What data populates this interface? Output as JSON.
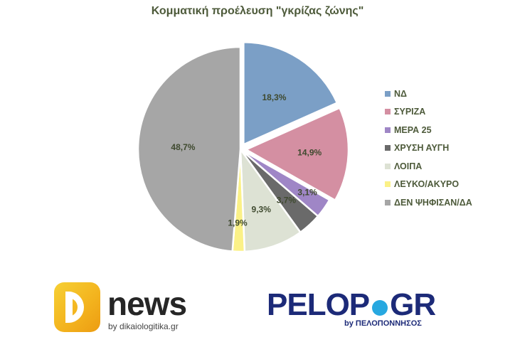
{
  "chart_data": {
    "type": "pie",
    "title": "Κομματική προέλευση \"γκρίζας ζώνης\"",
    "start_angle_deg": 0,
    "direction": "clockwise",
    "exploded": [
      "ΝΔ",
      "ΣΥΡΙΖΑ"
    ],
    "legend_position": "right",
    "slices": [
      {
        "label": "ΝΔ",
        "value": 18.3,
        "value_label": "18,3%",
        "color": "#7b9fc6"
      },
      {
        "label": "ΣΥΡΙΖΑ",
        "value": 14.9,
        "value_label": "14,9%",
        "color": "#d48fa2"
      },
      {
        "label": "ΜΕΡΑ 25",
        "value": 3.1,
        "value_label": "3,1%",
        "color": "#9f86c6"
      },
      {
        "label": "ΧΡΥΣΗ ΑΥΓΗ",
        "value": 3.7,
        "value_label": "3,7%",
        "color": "#6a6a6a"
      },
      {
        "label": "ΛΟΙΠΑ",
        "value": 9.3,
        "value_label": "9,3%",
        "color": "#dde2d4"
      },
      {
        "label": "ΛΕΥΚΟ/ΑΚΥΡΟ",
        "value": 1.9,
        "value_label": "1,9%",
        "color": "#fbf187"
      },
      {
        "label": "ΔΕΝ ΨΗΦΙΣΑΝ/ΔΑ",
        "value": 48.7,
        "value_label": "48,7%",
        "color": "#a6a6a6"
      }
    ]
  },
  "logos": {
    "dnews": {
      "word": "news",
      "byline": "by dikaiologitika.gr"
    },
    "pelop": {
      "left": "PELOP",
      "right": "GR",
      "byline": "by ΠΕΛΟΠΟΝΝΗΣΟΣ"
    }
  }
}
